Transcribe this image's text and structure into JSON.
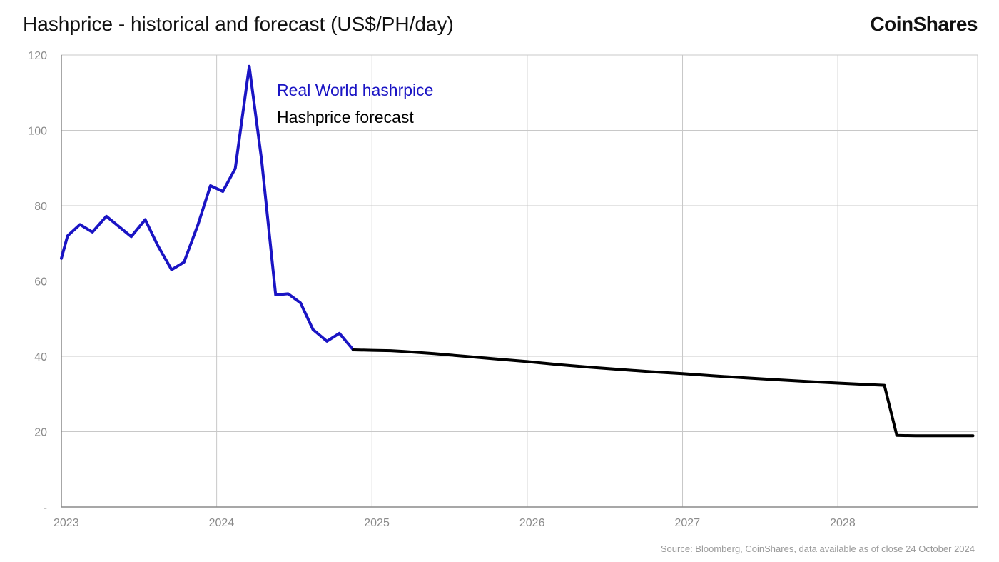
{
  "title": "Hashprice - historical and forecast (US$/PH/day)",
  "brand": "CoinShares",
  "source": "Source: Bloomberg, CoinShares, data available as of close 24 October 2024",
  "chart_data": {
    "type": "line",
    "title": "Hashprice - historical and forecast (US$/PH/day)",
    "xlabel": "",
    "ylabel": "",
    "xlim": [
      2023.0,
      2028.9
    ],
    "ylim": [
      0,
      120
    ],
    "yticks": [
      0,
      20,
      40,
      60,
      80,
      100,
      120
    ],
    "ytick_labels": [
      "-",
      "20",
      "40",
      "60",
      "80",
      "100",
      "120"
    ],
    "xticks": [
      2023,
      2024,
      2025,
      2026,
      2027,
      2028
    ],
    "xtick_labels": [
      "2023",
      "2024",
      "2025",
      "2026",
      "2027",
      "2028"
    ],
    "grid": true,
    "legend": "top-left",
    "series": [
      {
        "name": "Real World hashrpice",
        "color": "#1a14c4",
        "x": [
          2023.0,
          2023.04,
          2023.12,
          2023.2,
          2023.29,
          2023.45,
          2023.54,
          2023.62,
          2023.71,
          2023.79,
          2023.88,
          2023.96,
          2024.04,
          2024.12,
          2024.21,
          2024.29,
          2024.38,
          2024.46,
          2024.54,
          2024.62,
          2024.71,
          2024.79,
          2024.88
        ],
        "y": [
          66,
          72,
          75,
          73,
          77.2,
          71.8,
          76.3,
          69.5,
          63,
          65,
          75,
          85.3,
          83.8,
          89.9,
          117,
          92,
          56.3,
          56.6,
          54.2,
          47.1,
          44,
          46.1,
          41.7
        ]
      },
      {
        "name": "Hashprice forecast",
        "color": "#000000",
        "x": [
          2024.88,
          2025.0,
          2025.12,
          2025.2,
          2025.4,
          2025.6,
          2025.8,
          2026.0,
          2026.2,
          2026.4,
          2026.6,
          2026.8,
          2027.0,
          2027.2,
          2027.4,
          2027.6,
          2027.8,
          2028.0,
          2028.2,
          2028.3,
          2028.38,
          2028.5,
          2028.7,
          2028.87
        ],
        "y": [
          41.7,
          41.6,
          41.5,
          41.3,
          40.7,
          40.0,
          39.3,
          38.6,
          37.8,
          37.1,
          36.5,
          35.9,
          35.4,
          34.8,
          34.3,
          33.8,
          33.3,
          32.9,
          32.5,
          32.3,
          19.0,
          18.9,
          18.9,
          18.9
        ]
      }
    ]
  }
}
